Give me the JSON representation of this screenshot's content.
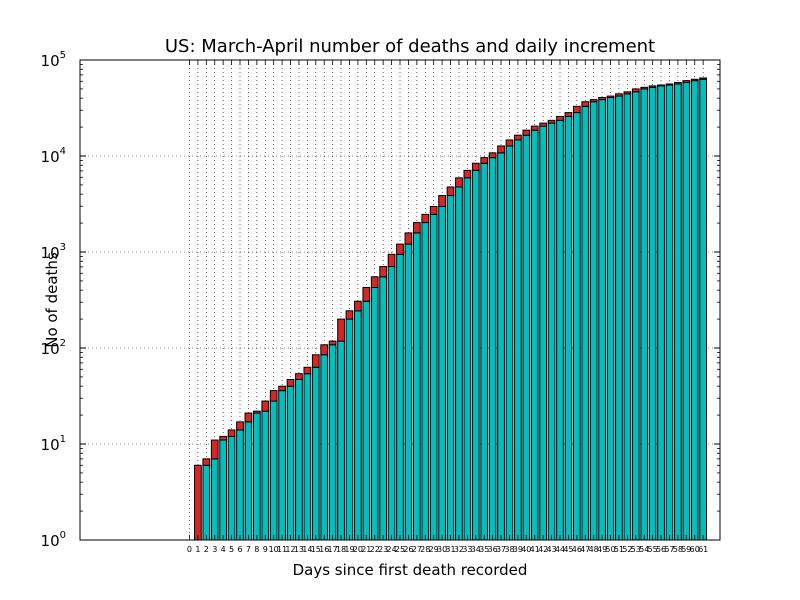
{
  "chart_data": {
    "type": "bar",
    "title": "US: March-April number of deaths and daily increment",
    "xlabel": "Days since first death recorded",
    "ylabel": "No of deaths",
    "yscale": "log",
    "ylim": [
      1,
      100000
    ],
    "y_ticks": [
      {
        "base": "10",
        "exp": "0"
      },
      {
        "base": "10",
        "exp": "1"
      },
      {
        "base": "10",
        "exp": "2"
      },
      {
        "base": "10",
        "exp": "3"
      },
      {
        "base": "10",
        "exp": "4"
      },
      {
        "base": "10",
        "exp": "5"
      }
    ],
    "xlim": [
      -13,
      63
    ],
    "x_tick_labels": [
      "0",
      "1",
      "2",
      "3",
      "4",
      "5",
      "6",
      "7",
      "8",
      "9",
      "10",
      "11",
      "12",
      "13",
      "14",
      "15",
      "16",
      "17",
      "18",
      "19",
      "20",
      "21",
      "22",
      "23",
      "24",
      "25",
      "26",
      "27",
      "28",
      "29",
      "30",
      "31",
      "32",
      "33",
      "34",
      "35",
      "36",
      "37",
      "38",
      "39",
      "40",
      "41",
      "42",
      "43",
      "44",
      "45",
      "46",
      "47",
      "48",
      "49",
      "50",
      "51",
      "52",
      "53",
      "54",
      "55",
      "56",
      "57",
      "58",
      "59",
      "60",
      "61"
    ],
    "grid": true,
    "colors": {
      "previous": "#00bfbf",
      "increment": "#d62728",
      "edge": "#000000"
    },
    "days": [
      1,
      2,
      3,
      4,
      5,
      6,
      7,
      8,
      9,
      10,
      11,
      12,
      13,
      14,
      15,
      16,
      17,
      18,
      19,
      20,
      21,
      22,
      23,
      24,
      25,
      26,
      27,
      28,
      29,
      30,
      31,
      32,
      33,
      34,
      35,
      36,
      37,
      38,
      39,
      40,
      41,
      42,
      43,
      44,
      45,
      46,
      47,
      48,
      49,
      50,
      51,
      52,
      53,
      54,
      55,
      56,
      57,
      58,
      59,
      60,
      61
    ],
    "total_deaths": [
      6,
      7,
      11,
      12,
      14,
      17,
      21,
      22,
      28,
      36,
      40,
      47,
      54,
      63,
      85,
      108,
      118,
      200,
      244,
      307,
      427,
      552,
      706,
      946,
      1209,
      1581,
      2026,
      2467,
      2978,
      3873,
      4757,
      5926,
      7087,
      8407,
      9619,
      10783,
      12722,
      14695,
      16478,
      18586,
      20462,
      22019,
      23529,
      25831,
      28325,
      32916,
      36773,
      38664,
      40661,
      42094,
      44444,
      46622,
      49954,
      51949,
      53755,
      54881,
      56253,
      58355,
      60967,
      62996,
      64943
    ],
    "previous_deaths": [
      0,
      6,
      7,
      11,
      12,
      14,
      17,
      21,
      22,
      28,
      36,
      40,
      47,
      54,
      63,
      85,
      108,
      118,
      200,
      244,
      307,
      427,
      552,
      706,
      946,
      1209,
      1581,
      2026,
      2467,
      2978,
      3873,
      4757,
      5926,
      7087,
      8407,
      9619,
      10783,
      12722,
      14695,
      16478,
      18586,
      20462,
      22019,
      23529,
      25831,
      28325,
      32916,
      36773,
      38664,
      40661,
      42094,
      44444,
      46622,
      49954,
      51949,
      53755,
      54881,
      56253,
      58355,
      60967,
      62996
    ]
  }
}
